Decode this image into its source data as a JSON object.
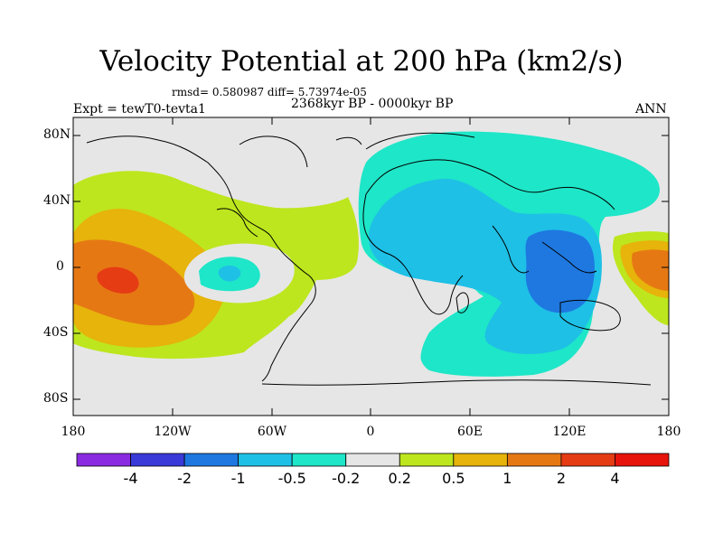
{
  "title": "Velocity Potential at 200 hPa (km2/s)",
  "stats": "rmsd= 0.580987 diff= 5.73974e-05",
  "experiment": "Expt = tewT0-tevta1",
  "period": "2368kyr BP - 0000kyr BP",
  "season": "ANN",
  "lat_ticks": [
    "80N",
    "40N",
    "0",
    "40S",
    "80S"
  ],
  "lon_ticks": [
    "180",
    "120W",
    "60W",
    "0",
    "60E",
    "120E",
    "180"
  ],
  "colorbar": {
    "colors": [
      "#8a2be2",
      "#3a3ad8",
      "#1e78e0",
      "#1ec0e6",
      "#1ee6c8",
      "#e6e6e6",
      "#bde61e",
      "#e6b40a",
      "#e67814",
      "#e63c14",
      "#e6140a"
    ],
    "labels": [
      "-4",
      "-2",
      "-1",
      "-0.5",
      "-0.2",
      "0.2",
      "0.5",
      "1",
      "2",
      "4"
    ]
  },
  "palette": {
    "neutral": "#e6e6e6",
    "lime": "#bde61e",
    "gold": "#e6b40a",
    "orange": "#e67814",
    "red": "#e63c14",
    "teal": "#1ee6c8",
    "cyan": "#1ec0e6",
    "blue": "#1e78e0"
  }
}
